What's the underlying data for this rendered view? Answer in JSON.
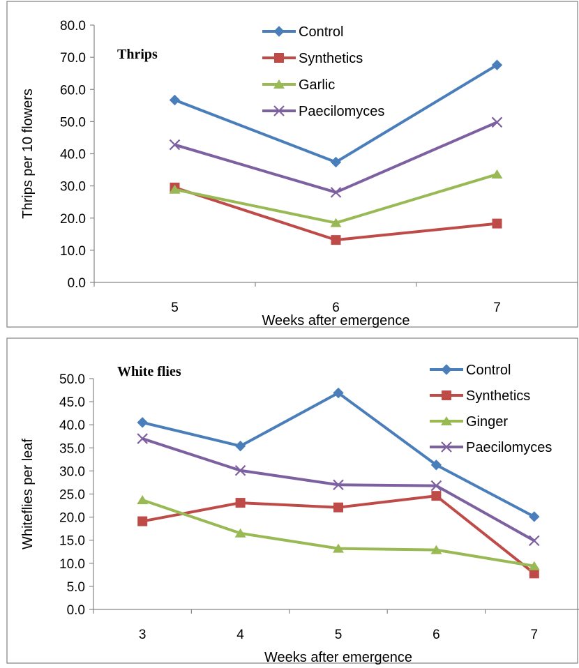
{
  "chart_data": [
    {
      "type": "line",
      "title": "Thrips",
      "xlabel": "Weeks after emergence",
      "ylabel": "Thrips per 10 flowers",
      "categories": [
        "5",
        "6",
        "7"
      ],
      "ylim": [
        0,
        80
      ],
      "yticks": [
        "0.0",
        "10.0",
        "20.0",
        "30.0",
        "40.0",
        "50.0",
        "60.0",
        "70.0",
        "80.0"
      ],
      "legend": "top-center",
      "grid": false,
      "series": [
        {
          "name": "Control",
          "color": "#4A7EBB",
          "marker": "diamond",
          "values": [
            56.7,
            37.4,
            67.6
          ]
        },
        {
          "name": "Synthetics",
          "color": "#BE4B48",
          "marker": "square",
          "values": [
            29.5,
            13.2,
            18.3
          ]
        },
        {
          "name": "Garlic",
          "color": "#98B954",
          "marker": "triangle",
          "values": [
            28.9,
            18.5,
            33.6
          ]
        },
        {
          "name": "Paecilomyces",
          "color": "#7D60A0",
          "marker": "x",
          "values": [
            42.8,
            28.0,
            49.8
          ]
        }
      ]
    },
    {
      "type": "line",
      "title": "White flies",
      "xlabel": "Weeks after emergence",
      "ylabel": "Whiteflies per leaf",
      "categories": [
        "3",
        "4",
        "5",
        "6",
        "7"
      ],
      "ylim": [
        0,
        50
      ],
      "yticks": [
        "0.0",
        "5.0",
        "10.0",
        "15.0",
        "20.0",
        "25.0",
        "30.0",
        "35.0",
        "40.0",
        "45.0",
        "50.0"
      ],
      "legend": "top-right",
      "grid": false,
      "series": [
        {
          "name": "Control",
          "color": "#4A7EBB",
          "marker": "diamond",
          "values": [
            40.5,
            35.4,
            46.9,
            31.3,
            20.1
          ]
        },
        {
          "name": "Synthetics",
          "color": "#BE4B48",
          "marker": "square",
          "values": [
            19.1,
            23.1,
            22.1,
            24.6,
            7.8
          ]
        },
        {
          "name": "Ginger",
          "color": "#98B954",
          "marker": "triangle",
          "values": [
            23.7,
            16.5,
            13.2,
            12.9,
            9.4
          ]
        },
        {
          "name": "Paecilomyces",
          "color": "#7D60A0",
          "marker": "x",
          "values": [
            37.0,
            30.1,
            27.0,
            26.8,
            14.9
          ]
        }
      ]
    }
  ]
}
